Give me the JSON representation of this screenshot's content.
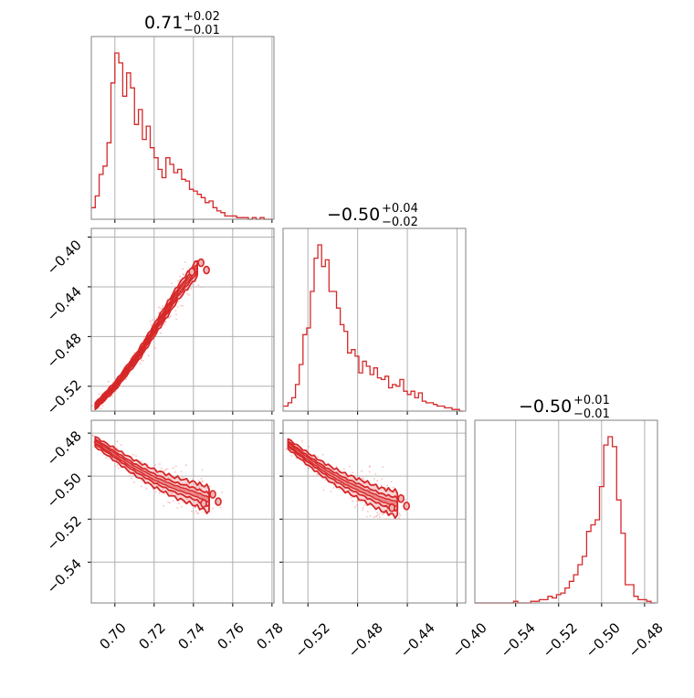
{
  "chart_data": [
    {
      "type": "histogram",
      "panel": "hist-param-1",
      "title": "0.71",
      "title_sup": "+0.02",
      "title_sub": "−0.01",
      "xlim": [
        0.688,
        0.781
      ],
      "xticks": [
        0.7,
        0.72,
        0.74,
        0.76,
        0.78
      ],
      "bins_x": [
        0.688,
        0.69,
        0.692,
        0.694,
        0.696,
        0.698,
        0.7,
        0.702,
        0.704,
        0.706,
        0.708,
        0.71,
        0.712,
        0.714,
        0.716,
        0.718,
        0.72,
        0.722,
        0.724,
        0.726,
        0.728,
        0.73,
        0.732,
        0.734,
        0.736,
        0.738,
        0.74,
        0.742,
        0.744,
        0.746,
        0.748,
        0.75,
        0.752,
        0.754,
        0.756,
        0.758,
        0.76,
        0.762,
        0.764,
        0.766,
        0.768,
        0.77,
        0.772,
        0.774,
        0.776,
        0.778,
        0.78
      ],
      "heights": [
        0.07,
        0.14,
        0.27,
        0.32,
        0.46,
        0.82,
        1.0,
        0.94,
        0.74,
        0.88,
        0.79,
        0.57,
        0.66,
        0.48,
        0.56,
        0.43,
        0.37,
        0.3,
        0.25,
        0.37,
        0.33,
        0.28,
        0.3,
        0.24,
        0.23,
        0.18,
        0.17,
        0.15,
        0.13,
        0.1,
        0.11,
        0.07,
        0.05,
        0.04,
        0.02,
        0.02,
        0.02,
        0.01,
        0.01,
        0.01,
        0.0,
        0.01,
        0.0,
        0.01,
        0.0,
        0.0
      ],
      "color": "#d62728",
      "grid": true
    },
    {
      "type": "histogram",
      "panel": "hist-param-2",
      "title": "−0.50",
      "title_sup": "+0.04",
      "title_sub": "−0.02",
      "xlim": [
        -0.54,
        -0.393
      ],
      "xticks": [
        -0.52,
        -0.48,
        -0.44,
        -0.4
      ],
      "bins_x": [
        -0.54,
        -0.536,
        -0.533,
        -0.53,
        -0.527,
        -0.524,
        -0.521,
        -0.518,
        -0.515,
        -0.512,
        -0.509,
        -0.506,
        -0.503,
        -0.5,
        -0.497,
        -0.494,
        -0.491,
        -0.488,
        -0.485,
        -0.482,
        -0.479,
        -0.476,
        -0.473,
        -0.47,
        -0.467,
        -0.464,
        -0.461,
        -0.458,
        -0.455,
        -0.452,
        -0.449,
        -0.446,
        -0.443,
        -0.44,
        -0.437,
        -0.434,
        -0.431,
        -0.428,
        -0.425,
        -0.422,
        -0.419,
        -0.416,
        -0.413,
        -0.41,
        -0.407,
        -0.404,
        -0.401,
        -0.398,
        -0.395
      ],
      "heights": [
        0.03,
        0.05,
        0.08,
        0.16,
        0.28,
        0.46,
        0.5,
        0.72,
        0.92,
        1.0,
        0.87,
        0.91,
        0.72,
        0.72,
        0.62,
        0.52,
        0.48,
        0.35,
        0.37,
        0.33,
        0.23,
        0.3,
        0.27,
        0.22,
        0.26,
        0.2,
        0.19,
        0.21,
        0.14,
        0.16,
        0.15,
        0.19,
        0.12,
        0.1,
        0.12,
        0.08,
        0.11,
        0.06,
        0.05,
        0.05,
        0.04,
        0.03,
        0.03,
        0.02,
        0.02,
        0.01,
        0.01,
        0.0
      ],
      "color": "#d62728",
      "grid": true
    },
    {
      "type": "histogram",
      "panel": "hist-param-3",
      "title": "−0.50",
      "title_sup": "+0.01",
      "title_sub": "−0.01",
      "xlim": [
        -0.559,
        -0.474
      ],
      "xticks": [
        -0.54,
        -0.52,
        -0.5,
        -0.48
      ],
      "bins_x": [
        -0.559,
        -0.557,
        -0.555,
        -0.553,
        -0.551,
        -0.549,
        -0.547,
        -0.545,
        -0.543,
        -0.541,
        -0.539,
        -0.537,
        -0.535,
        -0.533,
        -0.531,
        -0.529,
        -0.527,
        -0.525,
        -0.523,
        -0.521,
        -0.519,
        -0.517,
        -0.515,
        -0.513,
        -0.511,
        -0.509,
        -0.507,
        -0.505,
        -0.503,
        -0.501,
        -0.499,
        -0.497,
        -0.495,
        -0.493,
        -0.491,
        -0.489,
        -0.487,
        -0.485,
        -0.483,
        -0.481,
        -0.479,
        -0.477,
        -0.475
      ],
      "heights": [
        0.0,
        0.0,
        0.0,
        0.0,
        0.0,
        0.0,
        0.0,
        0.0,
        0.0,
        0.01,
        0.0,
        0.0,
        0.0,
        0.01,
        0.01,
        0.02,
        0.02,
        0.04,
        0.03,
        0.05,
        0.06,
        0.09,
        0.13,
        0.17,
        0.23,
        0.28,
        0.43,
        0.47,
        0.5,
        0.7,
        0.95,
        1.0,
        0.94,
        0.62,
        0.42,
        0.11,
        0.11,
        0.04,
        0.02,
        0.02,
        0.01,
        0.0
      ],
      "color": "#d62728",
      "grid": true
    },
    {
      "type": "contour",
      "panel": "p2-vs-p1",
      "xlim": [
        0.688,
        0.781
      ],
      "ylim": [
        -0.54,
        -0.393
      ],
      "yticks": [
        -0.52,
        -0.48,
        -0.44,
        -0.4
      ],
      "trend": [
        [
          0.69,
          -0.536
        ],
        [
          0.7,
          -0.52
        ],
        [
          0.712,
          -0.495
        ],
        [
          0.722,
          -0.47
        ],
        [
          0.732,
          -0.445
        ],
        [
          0.742,
          -0.425
        ]
      ],
      "color": "#d62728",
      "grid": true
    },
    {
      "type": "contour",
      "panel": "p3-vs-p1",
      "xlim": [
        0.688,
        0.781
      ],
      "ylim": [
        -0.559,
        -0.474
      ],
      "yticks": [
        -0.48,
        -0.5,
        -0.52,
        -0.54
      ],
      "trend": [
        [
          0.69,
          -0.484
        ],
        [
          0.7,
          -0.49
        ],
        [
          0.71,
          -0.496
        ],
        [
          0.72,
          -0.501
        ],
        [
          0.73,
          -0.505
        ],
        [
          0.74,
          -0.508
        ],
        [
          0.748,
          -0.511
        ]
      ],
      "color": "#d62728",
      "grid": true
    },
    {
      "type": "contour",
      "panel": "p3-vs-p2",
      "xlim": [
        -0.54,
        -0.393
      ],
      "ylim": [
        -0.559,
        -0.474
      ],
      "trend": [
        [
          -0.536,
          -0.485
        ],
        [
          -0.52,
          -0.492
        ],
        [
          -0.505,
          -0.498
        ],
        [
          -0.49,
          -0.503
        ],
        [
          -0.475,
          -0.507
        ],
        [
          -0.46,
          -0.511
        ],
        [
          -0.448,
          -0.513
        ]
      ],
      "color": "#d62728",
      "grid": true
    }
  ],
  "tick_labels": {
    "p1_x": [
      "0.70",
      "0.72",
      "0.74",
      "0.76",
      "0.78"
    ],
    "p2_x": [
      "−0.52",
      "−0.48",
      "−0.44",
      "−0.40"
    ],
    "p3_x": [
      "−0.54",
      "−0.52",
      "−0.50",
      "−0.48"
    ],
    "p2_y": [
      "−0.40",
      "−0.44",
      "−0.48",
      "−0.52"
    ],
    "p3_y": [
      "−0.48",
      "−0.50",
      "−0.52",
      "−0.54"
    ]
  },
  "colors": {
    "line": "#d62728",
    "fill": "#f4b6b9",
    "points": "#f2a5a7",
    "grid": "#b0b0b0",
    "frame": "#808080"
  }
}
